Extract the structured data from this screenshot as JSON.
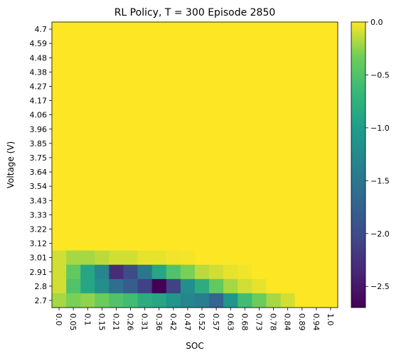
{
  "chart_data": {
    "type": "heatmap",
    "title": "RL Policy, T = 300 Episode 2850",
    "xlabel": "SOC",
    "ylabel": "Voltage (V)",
    "colormap": "viridis",
    "colorbar": {
      "min": -2.7,
      "max": 0.0,
      "tick_values": [
        0.0,
        -0.5,
        -1.0,
        -1.5,
        -2.0,
        -2.5
      ],
      "tick_labels": [
        "0.0",
        "−0.5",
        "−1.0",
        "−1.5",
        "−2.0",
        "−2.5"
      ]
    },
    "x_tick_labels": [
      "0.0",
      "0.05",
      "0.1",
      "0.15",
      "0.21",
      "0.26",
      "0.31",
      "0.36",
      "0.42",
      "0.47",
      "0.52",
      "0.57",
      "0.63",
      "0.68",
      "0.73",
      "0.78",
      "0.84",
      "0.89",
      "0.94",
      "1.0"
    ],
    "y_tick_labels_top_to_bottom": [
      "4.7",
      "4.59",
      "4.48",
      "4.38",
      "4.27",
      "4.17",
      "4.06",
      "3.96",
      "3.85",
      "3.75",
      "3.64",
      "3.54",
      "3.43",
      "3.33",
      "3.22",
      "3.12",
      "3.01",
      "2.91",
      "2.8",
      "2.7"
    ],
    "values_top_to_bottom": [
      [
        0,
        0,
        0,
        0,
        0,
        0,
        0,
        0,
        0,
        0,
        0,
        0,
        0,
        0,
        0,
        0,
        0,
        0,
        0,
        0
      ],
      [
        0,
        0,
        0,
        0,
        0,
        0,
        0,
        0,
        0,
        0,
        0,
        0,
        0,
        0,
        0,
        0,
        0,
        0,
        0,
        0
      ],
      [
        0,
        0,
        0,
        0,
        0,
        0,
        0,
        0,
        0,
        0,
        0,
        0,
        0,
        0,
        0,
        0,
        0,
        0,
        0,
        0
      ],
      [
        0,
        0,
        0,
        0,
        0,
        0,
        0,
        0,
        0,
        0,
        0,
        0,
        0,
        0,
        0,
        0,
        0,
        0,
        0,
        0
      ],
      [
        0,
        0,
        0,
        0,
        0,
        0,
        0,
        0,
        0,
        0,
        0,
        0,
        0,
        0,
        0,
        0,
        0,
        0,
        0,
        0
      ],
      [
        0,
        0,
        0,
        0,
        0,
        0,
        0,
        0,
        0,
        0,
        0,
        0,
        0,
        0,
        0,
        0,
        0,
        0,
        0,
        0
      ],
      [
        0,
        0,
        0,
        0,
        0,
        0,
        0,
        0,
        0,
        0,
        0,
        0,
        0,
        0,
        0,
        0,
        0,
        0,
        0,
        0
      ],
      [
        0,
        0,
        0,
        0,
        0,
        0,
        0,
        0,
        0,
        0,
        0,
        0,
        0,
        0,
        0,
        0,
        0,
        0,
        0,
        0
      ],
      [
        0,
        0,
        0,
        0,
        0,
        0,
        0,
        0,
        0,
        0,
        0,
        0,
        0,
        0,
        0,
        0,
        0,
        0,
        0,
        0
      ],
      [
        0,
        0,
        0,
        0,
        0,
        0,
        0,
        0,
        0,
        0,
        0,
        0,
        0,
        0,
        0,
        0,
        0,
        0,
        0,
        0
      ],
      [
        0,
        0,
        0,
        0,
        0,
        0,
        0,
        0,
        0,
        0,
        0,
        0,
        0,
        0,
        0,
        0,
        0,
        0,
        0,
        0
      ],
      [
        0,
        0,
        0,
        0,
        0,
        0,
        0,
        0,
        0,
        0,
        0,
        0,
        0,
        0,
        0,
        0,
        0,
        0,
        0,
        0
      ],
      [
        0,
        0,
        0,
        0,
        0,
        0,
        0,
        0,
        0,
        0,
        0,
        0,
        0,
        0,
        0,
        0,
        0,
        0,
        0,
        0
      ],
      [
        0,
        0,
        0,
        0,
        0,
        0,
        0,
        0,
        0,
        0,
        0,
        0,
        0,
        0,
        0,
        0,
        0,
        0,
        0,
        0
      ],
      [
        0,
        0,
        0,
        0,
        0,
        0,
        0,
        0,
        0,
        0,
        0,
        0,
        0,
        0,
        0,
        0,
        0,
        0,
        0,
        0
      ],
      [
        0,
        0,
        0,
        0,
        0,
        0,
        0,
        0,
        0,
        0,
        0,
        0,
        0,
        0,
        0,
        0,
        0,
        0,
        0,
        0
      ],
      [
        -0.1,
        -0.2,
        -0.2,
        -0.15,
        -0.1,
        -0.1,
        -0.05,
        -0.05,
        -0.03,
        -0.02,
        0,
        0,
        0,
        0,
        0,
        0,
        0,
        0,
        0,
        0
      ],
      [
        -0.1,
        -0.4,
        -0.9,
        -1.3,
        -2.3,
        -2.0,
        -1.5,
        -0.9,
        -0.5,
        -0.3,
        -0.15,
        -0.1,
        -0.05,
        -0.03,
        0,
        0,
        0,
        0,
        0,
        0
      ],
      [
        -0.1,
        -0.5,
        -0.9,
        -1.2,
        -1.6,
        -1.8,
        -2.1,
        -2.7,
        -2.1,
        -1.2,
        -0.8,
        -0.4,
        -0.2,
        -0.1,
        -0.05,
        0,
        0,
        0,
        0,
        0
      ],
      [
        -0.2,
        -0.3,
        -0.25,
        -0.35,
        -0.5,
        -0.6,
        -0.8,
        -0.9,
        -1.1,
        -1.3,
        -1.4,
        -1.7,
        -1.1,
        -0.6,
        -0.35,
        -0.2,
        -0.1,
        0,
        0,
        0
      ]
    ]
  }
}
